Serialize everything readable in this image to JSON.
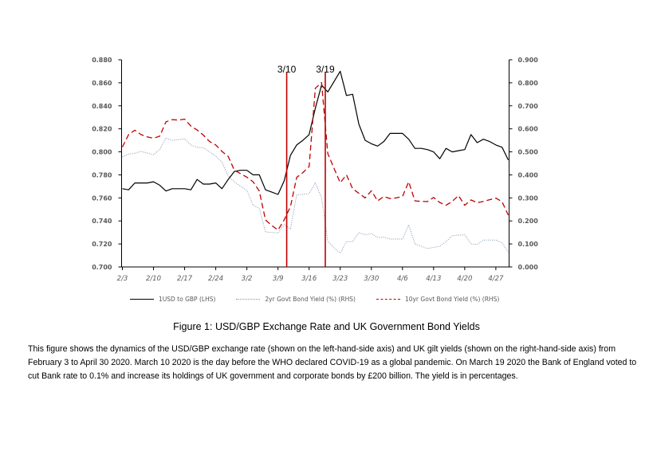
{
  "chart_data": {
    "type": "line",
    "x_unit": "trading day index (Feb 3 to Apr 30 2020)",
    "x_tick_labels": [
      "2/3",
      "2/10",
      "2/17",
      "2/24",
      "3/2",
      "3/9",
      "3/16",
      "3/23",
      "3/30",
      "4/6",
      "4/13",
      "4/20",
      "4/27"
    ],
    "x_tick_step": 5,
    "left_axis": {
      "min": 0.7,
      "max": 0.88,
      "step": 0.02,
      "labels": [
        "0.700",
        "0.720",
        "0.740",
        "0.760",
        "0.780",
        "0.800",
        "0.820",
        "0.840",
        "0.860",
        "0.880"
      ]
    },
    "right_axis": {
      "min": 0.0,
      "max": 0.9,
      "step": 0.1,
      "labels": [
        "0.000",
        "0.100",
        "0.200",
        "0.300",
        "0.400",
        "0.500",
        "0.600",
        "0.700",
        "0.800",
        "0.900"
      ]
    },
    "event_lines": [
      {
        "label": "3/10",
        "x": 26.4
      },
      {
        "label": "3/19",
        "x": 32.6
      }
    ],
    "series": [
      {
        "name": "1USD to GBP  (LHS)",
        "axis": "left",
        "color": "#000000",
        "style": "solid",
        "values": [
          0.768,
          0.767,
          0.773,
          0.773,
          0.773,
          0.774,
          0.771,
          0.766,
          0.768,
          0.768,
          0.768,
          0.767,
          0.776,
          0.772,
          0.772,
          0.773,
          0.768,
          0.776,
          0.783,
          0.784,
          0.784,
          0.78,
          0.78,
          0.767,
          0.765,
          0.763,
          0.775,
          0.797,
          0.806,
          0.81,
          0.815,
          0.838,
          0.858,
          0.852,
          0.861,
          0.87,
          0.849,
          0.85,
          0.824,
          0.81,
          0.807,
          0.805,
          0.809,
          0.816,
          0.816,
          0.816,
          0.811,
          0.803,
          0.803,
          0.802,
          0.8,
          0.794,
          0.803,
          0.8,
          0.801,
          0.802,
          0.815,
          0.808,
          0.811,
          0.809,
          0.806,
          0.804,
          0.793
        ]
      },
      {
        "name": "2yr Govt Bond Yield (%) (RHS)",
        "axis": "right",
        "color": "#8497b0",
        "style": "dotted",
        "values": [
          0.479,
          0.49,
          0.494,
          0.502,
          0.495,
          0.488,
          0.51,
          0.56,
          0.55,
          0.553,
          0.556,
          0.53,
          0.52,
          0.518,
          0.5,
          0.481,
          0.455,
          0.395,
          0.37,
          0.35,
          0.333,
          0.268,
          0.255,
          0.152,
          0.15,
          0.147,
          0.185,
          0.165,
          0.313,
          0.316,
          0.318,
          0.366,
          0.3,
          0.112,
          0.083,
          0.06,
          0.11,
          0.11,
          0.149,
          0.14,
          0.145,
          0.128,
          0.129,
          0.121,
          0.121,
          0.121,
          0.183,
          0.1,
          0.09,
          0.08,
          0.085,
          0.09,
          0.11,
          0.136,
          0.138,
          0.14,
          0.1,
          0.098,
          0.117,
          0.117,
          0.117,
          0.105,
          0.063
        ]
      },
      {
        "name": "10yr Govt Bond Yield (%)  (RHS)",
        "axis": "right",
        "color": "#c00000",
        "style": "dashed",
        "values": [
          0.521,
          0.575,
          0.594,
          0.575,
          0.565,
          0.559,
          0.568,
          0.63,
          0.64,
          0.638,
          0.642,
          0.612,
          0.595,
          0.573,
          0.545,
          0.53,
          0.502,
          0.48,
          0.42,
          0.405,
          0.39,
          0.37,
          0.33,
          0.204,
          0.18,
          0.16,
          0.205,
          0.262,
          0.389,
          0.41,
          0.436,
          0.776,
          0.801,
          0.493,
          0.429,
          0.366,
          0.4,
          0.34,
          0.32,
          0.3,
          0.331,
          0.287,
          0.306,
          0.297,
          0.3,
          0.306,
          0.37,
          0.287,
          0.285,
          0.284,
          0.302,
          0.28,
          0.268,
          0.285,
          0.31,
          0.268,
          0.291,
          0.279,
          0.285,
          0.292,
          0.299,
          0.283,
          0.225
        ]
      }
    ],
    "event_line_color": "#c00000",
    "legend_position": "bottom"
  },
  "caption": "Figure 1: USD/GBP Exchange Rate and UK Government Bond Yields",
  "note": "This figure shows the dynamics of the USD/GBP exchange rate (shown on the left-hand-side axis) and UK gilt yields (shown on the right-hand-side axis) from February 3 to April 30 2020. March 10 2020 is the day before the WHO declared COVID-19 as a global pandemic. On March 19 2020 the Bank of England voted to cut Bank rate to 0.1% and increase its holdings of UK government and corporate bonds by £200 billion. The yield is in percentages."
}
